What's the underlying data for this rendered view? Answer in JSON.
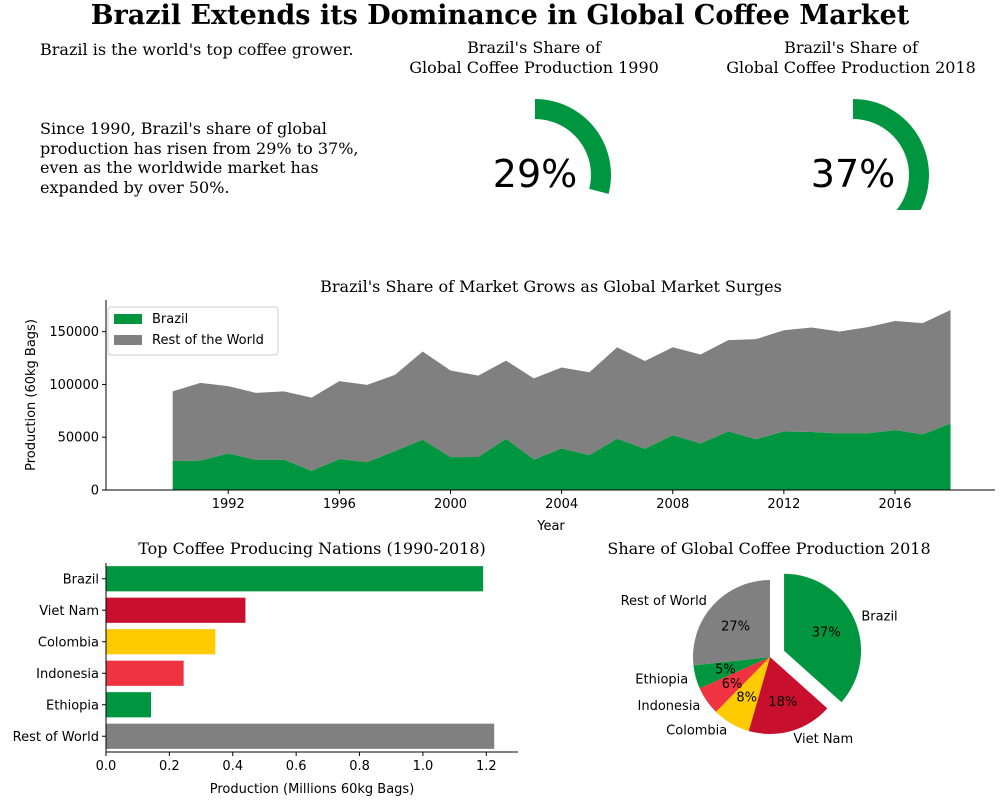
{
  "header": {
    "title": "Brazil Extends its Dominance in Global Coffee Market"
  },
  "text_panel": {
    "line1": "Brazil is the world's top coffee grower.",
    "para_lines": [
      "Since 1990, Brazil's share of global",
      "production has risen from 29% to 37%,",
      "even as the worldwide market has",
      "expanded by over 50%."
    ]
  },
  "colors": {
    "green": "#00963f",
    "red": "#c8102e",
    "yellow": "#fecb00",
    "light_red": "#ef3340",
    "gray": "#808080"
  },
  "chart_data": [
    {
      "type": "gauge",
      "title_lines": [
        "Brazil's Share of",
        "Global Coffee Production 1990"
      ],
      "value": 29,
      "label": "29%"
    },
    {
      "type": "gauge",
      "title_lines": [
        "Brazil's Share of",
        "Global Coffee Production 2018"
      ],
      "value": 37,
      "label": "37%"
    },
    {
      "type": "area",
      "title": "Brazil's Share of Market Grows as Global Market Surges",
      "xlabel": "Year",
      "ylabel": "Production (60kg Bags)",
      "xlim": [
        1987.6,
        2019.6
      ],
      "ylim": [
        0,
        180000
      ],
      "x_ticks": [
        1992,
        1996,
        2000,
        2004,
        2008,
        2012,
        2016
      ],
      "y_ticks": [
        0,
        50000,
        100000,
        150000
      ],
      "legend_position": "top-left",
      "x": [
        1990,
        1991,
        1992,
        1993,
        1994,
        1995,
        1996,
        1997,
        1998,
        1999,
        2000,
        2001,
        2002,
        2003,
        2004,
        2005,
        2006,
        2007,
        2008,
        2009,
        2010,
        2011,
        2012,
        2013,
        2014,
        2015,
        2016,
        2017,
        2018
      ],
      "series": [
        {
          "name": "Brazil",
          "values": [
            27500,
            27800,
            34600,
            28500,
            28600,
            18100,
            29200,
            26300,
            36800,
            47600,
            31100,
            31300,
            48500,
            28800,
            39300,
            32900,
            48500,
            39000,
            51900,
            44000,
            55400,
            48100,
            55400,
            54900,
            53500,
            53700,
            56700,
            52700,
            62900
          ]
        },
        {
          "name": "Rest of the World",
          "values": [
            65900,
            73700,
            63800,
            63500,
            64800,
            69400,
            74000,
            73300,
            72300,
            83600,
            82100,
            77100,
            74100,
            76900,
            76700,
            78600,
            86700,
            83200,
            83300,
            84400,
            86600,
            94800,
            95900,
            99000,
            96600,
            100500,
            103400,
            105400,
            107600
          ]
        }
      ]
    },
    {
      "type": "bar",
      "orientation": "horizontal",
      "title": "Top Coffee Producing Nations (1990-2018)",
      "xlabel": "Production (Millions 60kg Bags)",
      "xlim": [
        0,
        1.3
      ],
      "x_ticks": [
        "0.0",
        "0.2",
        "0.4",
        "0.6",
        "0.8",
        "1.0",
        "1.2"
      ],
      "categories": [
        "Brazil",
        "Viet Nam",
        "Colombia",
        "Indonesia",
        "Ethiopia",
        "Rest of World"
      ],
      "values": [
        1.19,
        0.44,
        0.345,
        0.245,
        0.142,
        1.225
      ]
    },
    {
      "type": "pie",
      "title": "Share of Global Coffee Production 2018",
      "slices": [
        {
          "label": "Brazil",
          "value": 37,
          "pct": "37%"
        },
        {
          "label": "Viet Nam",
          "value": 18,
          "pct": "18%"
        },
        {
          "label": "Colombia",
          "value": 8,
          "pct": "8%"
        },
        {
          "label": "Indonesia",
          "value": 6,
          "pct": "6%"
        },
        {
          "label": "Ethiopia",
          "value": 5,
          "pct": "5%"
        },
        {
          "label": "Rest of World",
          "value": 27,
          "pct": "27%"
        }
      ]
    }
  ]
}
